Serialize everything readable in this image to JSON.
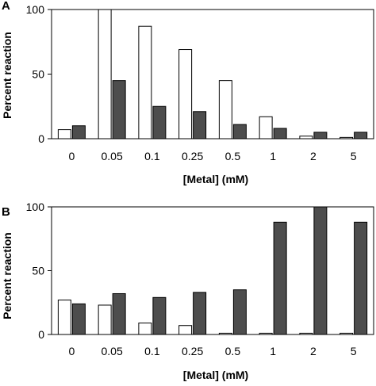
{
  "chart_data": [
    {
      "type": "bar",
      "panel_label": "A",
      "categories": [
        "0",
        "0.05",
        "0.1",
        "0.25",
        "0.5",
        "1",
        "2",
        "5"
      ],
      "series": [
        {
          "values": [
            7,
            100,
            87,
            69,
            45,
            17,
            2,
            1
          ],
          "color": "#ffffff"
        },
        {
          "values": [
            10,
            45,
            25,
            21,
            11,
            8,
            5,
            5
          ],
          "color": "#4d4d4d"
        }
      ],
      "xlabel": "[Metal] (mM)",
      "ylabel": "Percent reaction",
      "ylim": [
        0,
        100
      ],
      "yticks": [
        0,
        50,
        100
      ],
      "grid": false
    },
    {
      "type": "bar",
      "panel_label": "B",
      "categories": [
        "0",
        "0.05",
        "0.1",
        "0.25",
        "0.5",
        "1",
        "2",
        "5"
      ],
      "series": [
        {
          "values": [
            27,
            23,
            9,
            7,
            1,
            1,
            1,
            1
          ],
          "color": "#ffffff"
        },
        {
          "values": [
            24,
            32,
            29,
            33,
            35,
            88,
            100,
            88
          ],
          "color": "#4d4d4d"
        }
      ],
      "xlabel": "[Metal] (mM)",
      "ylabel": "Percent reaction",
      "ylim": [
        0,
        100
      ],
      "yticks": [
        0,
        50,
        100
      ],
      "grid": false
    }
  ]
}
